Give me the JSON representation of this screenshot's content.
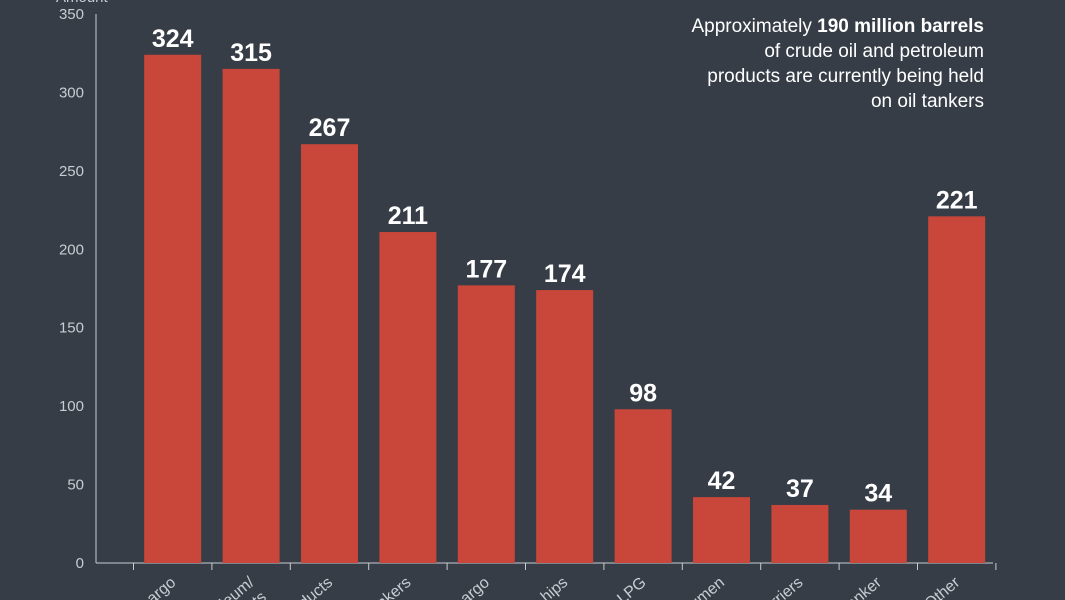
{
  "chart_data": {
    "type": "bar",
    "title": "",
    "xlabel": "",
    "ylabel": "Amount",
    "ylim": [
      0,
      350
    ],
    "yticks": [
      0,
      50,
      100,
      150,
      200,
      250,
      300,
      350
    ],
    "grid": false,
    "categories": [
      "argo",
      "leum/\ncts",
      "ducts",
      "nkers",
      "argo",
      "hips",
      "LPG",
      "umen",
      "rriers",
      "anker",
      "Other"
    ],
    "values": [
      324,
      315,
      267,
      211,
      177,
      174,
      98,
      42,
      37,
      34,
      221
    ],
    "bar_color": "#c9463a"
  },
  "annotation": {
    "pre": "Approximately ",
    "bold": "190 million barrels",
    "line2": "of crude oil and petroleum",
    "line3": "products are currently being held",
    "line4": "on oil tankers"
  },
  "colors": {
    "background": "#363d47",
    "axis": "#c9ccd1",
    "bar": "#c9463a",
    "text": "#ffffff"
  }
}
